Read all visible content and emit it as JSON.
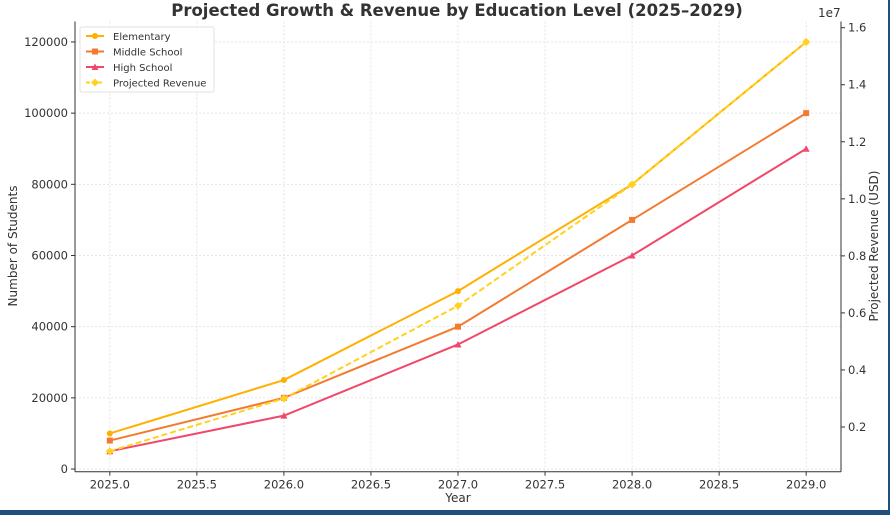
{
  "chart_data": {
    "type": "line",
    "title": "Projected Growth & Revenue by Education Level (2025–2029)",
    "xlabel": "Year",
    "ylabel": "Number of Students",
    "ylabel_right": "Projected Revenue (USD)",
    "right_axis_offset_label": "1e7",
    "x": [
      2025,
      2026,
      2027,
      2028,
      2029
    ],
    "xlim": [
      2024.8,
      2029.2
    ],
    "ylim": [
      -750,
      125750
    ],
    "ylim_right": [
      432500,
      16217500
    ],
    "x_ticks": [
      "2025.0",
      "2025.5",
      "2026.0",
      "2026.5",
      "2027.0",
      "2027.5",
      "2028.0",
      "2028.5",
      "2029.0"
    ],
    "y_ticks": [
      "0",
      "20000",
      "40000",
      "60000",
      "80000",
      "100000",
      "120000"
    ],
    "y_ticks_right": [
      "0.2",
      "0.4",
      "0.6",
      "0.8",
      "1.0",
      "1.2",
      "1.4",
      "1.6"
    ],
    "grid": true,
    "legend_placement": "top-left",
    "series": [
      {
        "name": "Elementary",
        "axis": "left",
        "color": "#FFB000",
        "marker": "circle",
        "dash": false,
        "values": [
          10000,
          25000,
          50000,
          80000,
          120000
        ]
      },
      {
        "name": "Middle School",
        "axis": "left",
        "color": "#F47A30",
        "marker": "square",
        "dash": false,
        "values": [
          8000,
          20000,
          40000,
          70000,
          100000
        ]
      },
      {
        "name": "High School",
        "axis": "left",
        "color": "#F2476A",
        "marker": "triangle",
        "dash": false,
        "values": [
          5000,
          15000,
          35000,
          60000,
          90000
        ]
      },
      {
        "name": "Projected Revenue",
        "axis": "right",
        "color": "#FFD21F",
        "marker": "diamond",
        "dash": true,
        "values": [
          1150000,
          3000000,
          6250000,
          10500000,
          15500000
        ]
      }
    ]
  }
}
